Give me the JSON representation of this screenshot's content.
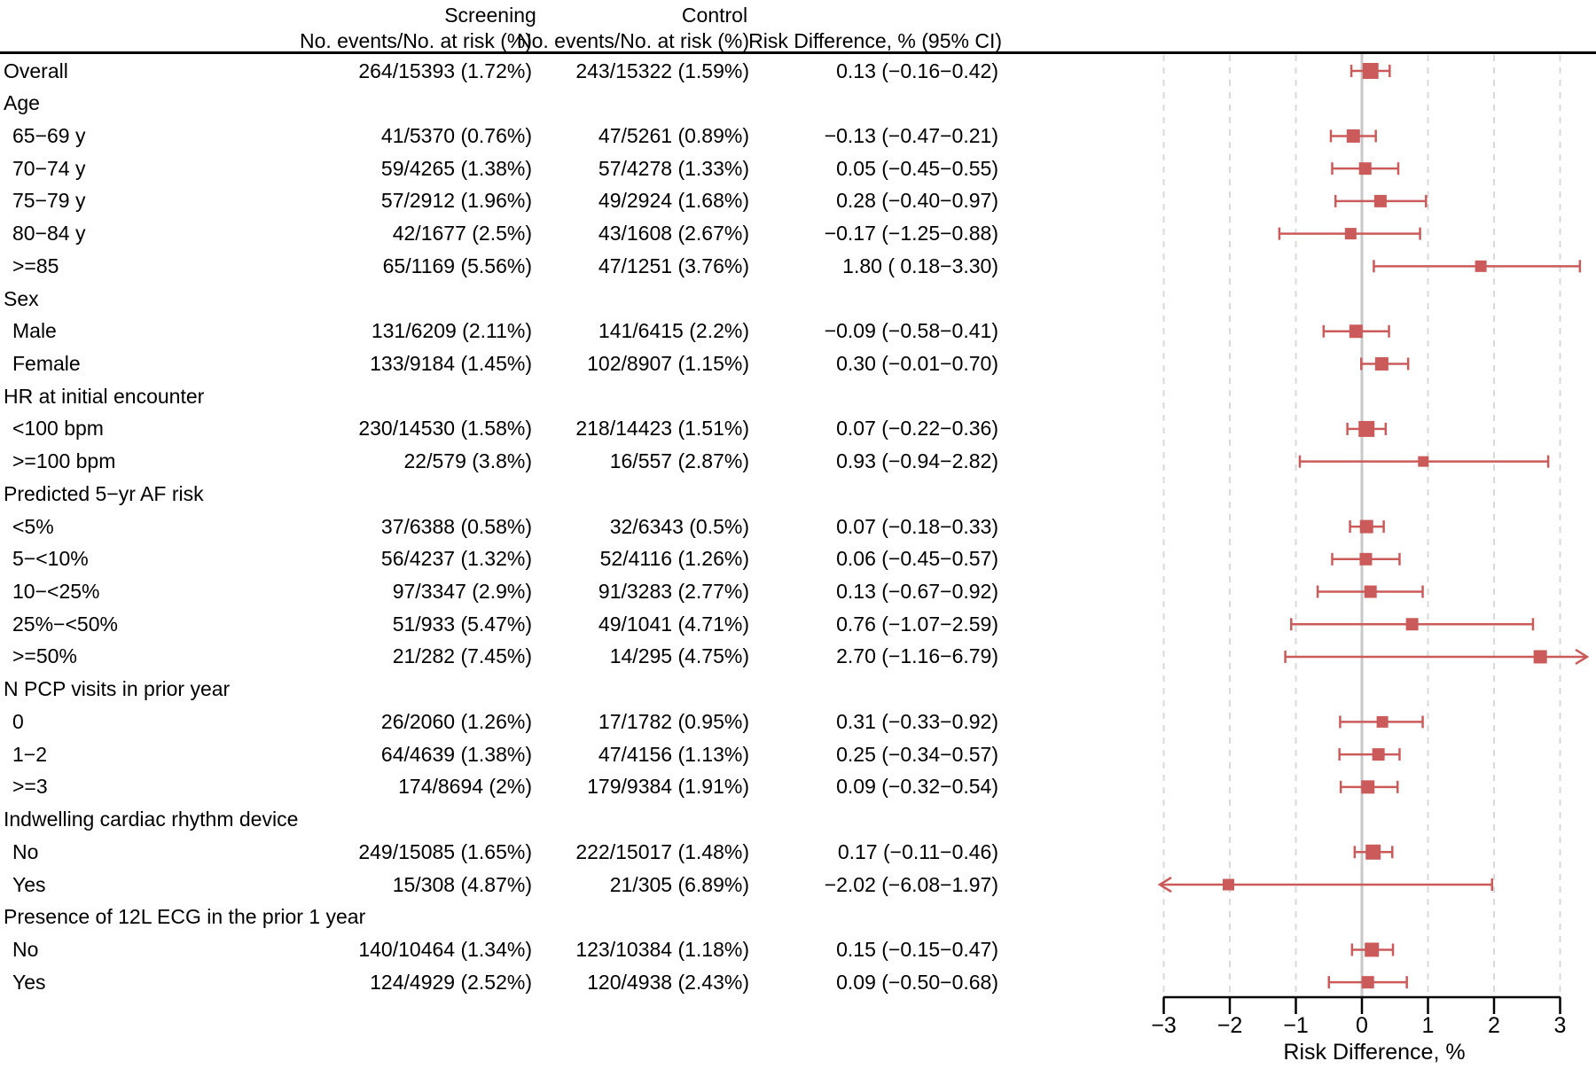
{
  "chart_data": {
    "type": "forest",
    "title": "",
    "xlabel": "Risk Difference, %",
    "columns": {
      "screening_title": "Screening",
      "control_title": "Control",
      "events_header": "No. events/No. at risk (%)",
      "rd_header": "Risk Difference, % (95% CI)"
    },
    "axis": {
      "min": -3,
      "max": 3,
      "ticks": [
        -3,
        -2,
        -1,
        0,
        1,
        2,
        3
      ],
      "grid": "dashed-at-integers",
      "zero_line": true
    },
    "colors": {
      "marker": "#CB5B5B",
      "zero_line": "#C8C8C8",
      "gridline": "#D9D9D9",
      "axis": "#000000"
    },
    "legend": null,
    "rows": [
      {
        "label": "Overall",
        "indent": false,
        "group": false,
        "screening": "264/15393 (1.72%)",
        "control": "243/15322 (1.59%)",
        "rd": "0.13 (−0.16−0.42)",
        "est": 0.13,
        "lo": -0.16,
        "hi": 0.42,
        "size": 18
      },
      {
        "label": "Age",
        "indent": false,
        "group": true
      },
      {
        "label": "65−69 y",
        "indent": true,
        "group": false,
        "screening": "41/5370 (0.76%)",
        "control": "47/5261 (0.89%)",
        "rd": "−0.13 (−0.47−0.21)",
        "est": -0.13,
        "lo": -0.47,
        "hi": 0.21,
        "size": 15
      },
      {
        "label": "70−74 y",
        "indent": true,
        "group": false,
        "screening": "59/4265 (1.38%)",
        "control": "57/4278 (1.33%)",
        "rd": "0.05 (−0.45−0.55)",
        "est": 0.05,
        "lo": -0.45,
        "hi": 0.55,
        "size": 14
      },
      {
        "label": "75−79 y",
        "indent": true,
        "group": false,
        "screening": "57/2912 (1.96%)",
        "control": "49/2924 (1.68%)",
        "rd": "0.28 (−0.40−0.97)",
        "est": 0.28,
        "lo": -0.4,
        "hi": 0.97,
        "size": 14
      },
      {
        "label": "80−84 y",
        "indent": true,
        "group": false,
        "screening": "42/1677 (2.5%)",
        "control": "43/1608 (2.67%)",
        "rd": "−0.17 (−1.25−0.88)",
        "est": -0.17,
        "lo": -1.25,
        "hi": 0.88,
        "size": 13
      },
      {
        "label": ">=85",
        "indent": true,
        "group": false,
        "screening": "65/1169 (5.56%)",
        "control": "47/1251 (3.76%)",
        "rd": "1.80 ( 0.18−3.30)",
        "est": 1.8,
        "lo": 0.18,
        "hi": 3.3,
        "size": 13
      },
      {
        "label": "Sex",
        "indent": false,
        "group": true
      },
      {
        "label": "Male",
        "indent": true,
        "group": false,
        "screening": "131/6209 (2.11%)",
        "control": "141/6415 (2.2%)",
        "rd": "−0.09 (−0.58−0.41)",
        "est": -0.09,
        "lo": -0.58,
        "hi": 0.41,
        "size": 15
      },
      {
        "label": "Female",
        "indent": true,
        "group": false,
        "screening": "133/9184 (1.45%)",
        "control": "102/8907 (1.15%)",
        "rd": "0.30 (−0.01−0.70)",
        "est": 0.3,
        "lo": -0.01,
        "hi": 0.7,
        "size": 15
      },
      {
        "label": "HR at initial encounter",
        "indent": false,
        "group": true
      },
      {
        "label": "<100 bpm",
        "indent": true,
        "group": false,
        "screening": "230/14530 (1.58%)",
        "control": "218/14423 (1.51%)",
        "rd": "0.07 (−0.22−0.36)",
        "est": 0.07,
        "lo": -0.22,
        "hi": 0.36,
        "size": 18
      },
      {
        "label": ">=100 bpm",
        "indent": true,
        "group": false,
        "screening": "22/579 (3.8%)",
        "control": "16/557 (2.87%)",
        "rd": "0.93 (−0.94−2.82)",
        "est": 0.93,
        "lo": -0.94,
        "hi": 2.82,
        "size": 12
      },
      {
        "label": "Predicted 5−yr AF risk",
        "indent": false,
        "group": true
      },
      {
        "label": "<5%",
        "indent": true,
        "group": false,
        "screening": "37/6388 (0.58%)",
        "control": "32/6343 (0.5%)",
        "rd": "0.07 (−0.18−0.33)",
        "est": 0.07,
        "lo": -0.18,
        "hi": 0.33,
        "size": 15
      },
      {
        "label": "5−<10%",
        "indent": true,
        "group": false,
        "screening": "56/4237 (1.32%)",
        "control": "52/4116 (1.26%)",
        "rd": "0.06 (−0.45−0.57)",
        "est": 0.06,
        "lo": -0.45,
        "hi": 0.57,
        "size": 14
      },
      {
        "label": "10−<25%",
        "indent": true,
        "group": false,
        "screening": "97/3347 (2.9%)",
        "control": "91/3283 (2.77%)",
        "rd": "0.13 (−0.67−0.92)",
        "est": 0.13,
        "lo": -0.67,
        "hi": 0.92,
        "size": 14
      },
      {
        "label": "25%−<50%",
        "indent": true,
        "group": false,
        "screening": "51/933 (5.47%)",
        "control": "49/1041 (4.71%)",
        "rd": "0.76 (−1.07−2.59)",
        "est": 0.76,
        "lo": -1.07,
        "hi": 2.59,
        "size": 14
      },
      {
        "label": ">=50%",
        "indent": true,
        "group": false,
        "screening": "21/282 (7.45%)",
        "control": "14/295 (4.75%)",
        "rd": "2.70 (−1.16−6.79)",
        "est": 2.7,
        "lo": -1.16,
        "hi": 6.79,
        "size": 15,
        "clip_hi": true
      },
      {
        "label": "N PCP visits in prior year",
        "indent": false,
        "group": true
      },
      {
        "label": "0",
        "indent": true,
        "group": false,
        "screening": "26/2060 (1.26%)",
        "control": "17/1782 (0.95%)",
        "rd": "0.31 (−0.33−0.92)",
        "est": 0.31,
        "lo": -0.33,
        "hi": 0.92,
        "size": 13
      },
      {
        "label": "1−2",
        "indent": true,
        "group": false,
        "screening": "64/4639 (1.38%)",
        "control": "47/4156 (1.13%)",
        "rd": "0.25 (−0.34−0.57)",
        "est": 0.25,
        "lo": -0.34,
        "hi": 0.57,
        "size": 14
      },
      {
        "label": ">=3",
        "indent": true,
        "group": false,
        "screening": "174/8694 (2%)",
        "control": "179/9384 (1.91%)",
        "rd": "0.09 (−0.32−0.54)",
        "est": 0.09,
        "lo": -0.32,
        "hi": 0.54,
        "size": 15
      },
      {
        "label": "Indwelling cardiac rhythm device",
        "indent": false,
        "group": true
      },
      {
        "label": "No",
        "indent": true,
        "group": false,
        "screening": "249/15085 (1.65%)",
        "control": "222/15017 (1.48%)",
        "rd": "0.17 (−0.11−0.46)",
        "est": 0.17,
        "lo": -0.11,
        "hi": 0.46,
        "size": 17
      },
      {
        "label": "Yes",
        "indent": true,
        "group": false,
        "screening": "15/308 (4.87%)",
        "control": "21/305 (6.89%)",
        "rd": "−2.02 (−6.08−1.97)",
        "est": -2.02,
        "lo": -6.08,
        "hi": 1.97,
        "size": 13,
        "clip_lo": true
      },
      {
        "label": "Presence of 12L ECG in the prior 1 year",
        "indent": false,
        "group": true
      },
      {
        "label": "No",
        "indent": true,
        "group": false,
        "screening": "140/10464 (1.34%)",
        "control": "123/10384 (1.18%)",
        "rd": "0.15 (−0.15−0.47)",
        "est": 0.15,
        "lo": -0.15,
        "hi": 0.47,
        "size": 16
      },
      {
        "label": "Yes",
        "indent": true,
        "group": false,
        "screening": "124/4929 (2.52%)",
        "control": "120/4938 (2.43%)",
        "rd": "0.09 (−0.50−0.68)",
        "est": 0.09,
        "lo": -0.5,
        "hi": 0.68,
        "size": 14
      }
    ]
  }
}
